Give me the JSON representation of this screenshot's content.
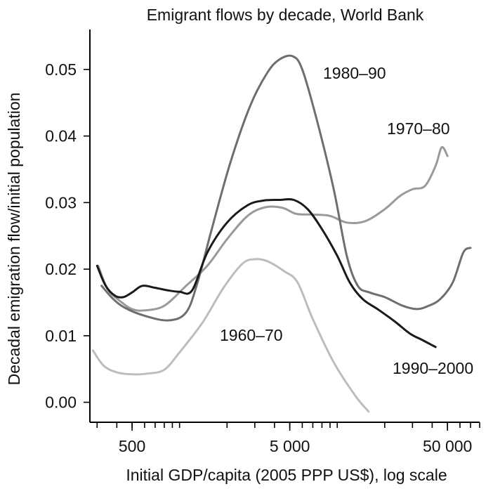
{
  "chart_data": {
    "type": "line",
    "title": "Emigrant flows by decade, World Bank",
    "xlabel": "Initial GDP/capita (2005 PPP US$), log scale",
    "ylabel": "Decadal emigration flow/initial population",
    "x_scale": "log",
    "xlim": [
      270,
      80000
    ],
    "ylim": [
      -0.003,
      0.056
    ],
    "x_ticks": [
      500,
      5000,
      50000
    ],
    "x_tick_labels": [
      "500",
      "5 000",
      "50 000"
    ],
    "y_ticks": [
      0.0,
      0.01,
      0.02,
      0.03,
      0.04,
      0.05
    ],
    "y_tick_labels": [
      "0.00",
      "0.01",
      "0.02",
      "0.03",
      "0.04",
      "0.05"
    ],
    "grid": false,
    "legend": "none",
    "series": [
      {
        "name": "1960–70",
        "color": "#bdbdbd",
        "points": [
          [
            282,
            0.0078
          ],
          [
            330,
            0.0055
          ],
          [
            400,
            0.0045
          ],
          [
            500,
            0.0042
          ],
          [
            620,
            0.0043
          ],
          [
            800,
            0.0049
          ],
          [
            1000,
            0.0075
          ],
          [
            1400,
            0.012
          ],
          [
            1900,
            0.0172
          ],
          [
            2500,
            0.0208
          ],
          [
            3000,
            0.0215
          ],
          [
            3600,
            0.0212
          ],
          [
            4600,
            0.0197
          ],
          [
            5600,
            0.018
          ],
          [
            7000,
            0.0125
          ],
          [
            9500,
            0.006
          ],
          [
            13000,
            0.001
          ],
          [
            15800,
            -0.0014
          ]
        ]
      },
      {
        "name": "1970–80",
        "color": "#9a9a9a",
        "points": [
          [
            305,
            0.0205
          ],
          [
            350,
            0.017
          ],
          [
            420,
            0.0152
          ],
          [
            500,
            0.014
          ],
          [
            600,
            0.0138
          ],
          [
            800,
            0.0145
          ],
          [
            1100,
            0.0175
          ],
          [
            1500,
            0.0205
          ],
          [
            2000,
            0.0245
          ],
          [
            2700,
            0.028
          ],
          [
            3500,
            0.0293
          ],
          [
            4500,
            0.0292
          ],
          [
            5500,
            0.0283
          ],
          [
            7000,
            0.0282
          ],
          [
            9000,
            0.028
          ],
          [
            11500,
            0.027
          ],
          [
            15000,
            0.0272
          ],
          [
            20000,
            0.029
          ],
          [
            25000,
            0.031
          ],
          [
            30000,
            0.032
          ],
          [
            36000,
            0.0325
          ],
          [
            42000,
            0.0355
          ],
          [
            46000,
            0.0383
          ],
          [
            50000,
            0.037
          ]
        ]
      },
      {
        "name": "1980–90",
        "color": "#6e6e6e",
        "points": [
          [
            320,
            0.0175
          ],
          [
            380,
            0.0155
          ],
          [
            450,
            0.0142
          ],
          [
            600,
            0.013
          ],
          [
            850,
            0.0123
          ],
          [
            1100,
            0.0135
          ],
          [
            1300,
            0.018
          ],
          [
            1600,
            0.026
          ],
          [
            2100,
            0.036
          ],
          [
            2800,
            0.0445
          ],
          [
            3600,
            0.0495
          ],
          [
            4300,
            0.0515
          ],
          [
            5200,
            0.052
          ],
          [
            6000,
            0.05
          ],
          [
            7500,
            0.042
          ],
          [
            9500,
            0.032
          ],
          [
            11500,
            0.022
          ],
          [
            13500,
            0.0175
          ],
          [
            16000,
            0.0165
          ],
          [
            20000,
            0.0158
          ],
          [
            26000,
            0.0145
          ],
          [
            32000,
            0.014
          ],
          [
            38000,
            0.0145
          ],
          [
            45000,
            0.0155
          ],
          [
            54000,
            0.018
          ],
          [
            63000,
            0.0225
          ],
          [
            70000,
            0.0232
          ]
        ]
      },
      {
        "name": "1990–2000",
        "color": "#1a1a1a",
        "points": [
          [
            300,
            0.0205
          ],
          [
            340,
            0.0175
          ],
          [
            390,
            0.016
          ],
          [
            440,
            0.0158
          ],
          [
            500,
            0.0165
          ],
          [
            580,
            0.0175
          ],
          [
            700,
            0.0172
          ],
          [
            850,
            0.0168
          ],
          [
            1000,
            0.0166
          ],
          [
            1200,
            0.0168
          ],
          [
            1500,
            0.0225
          ],
          [
            2000,
            0.027
          ],
          [
            2700,
            0.0296
          ],
          [
            3400,
            0.0303
          ],
          [
            4300,
            0.0304
          ],
          [
            5300,
            0.0304
          ],
          [
            6500,
            0.029
          ],
          [
            8000,
            0.026
          ],
          [
            10000,
            0.022
          ],
          [
            12000,
            0.018
          ],
          [
            14500,
            0.0155
          ],
          [
            18000,
            0.014
          ],
          [
            23000,
            0.0122
          ],
          [
            29000,
            0.0103
          ],
          [
            35000,
            0.0093
          ],
          [
            42000,
            0.0083
          ]
        ]
      }
    ],
    "annotations": [
      {
        "text": "1980–90",
        "series": "1980–90"
      },
      {
        "text": "1970–80",
        "series": "1970–80"
      },
      {
        "text": "1960–70",
        "series": "1960–70"
      },
      {
        "text": "1990–2000",
        "series": "1990–2000"
      }
    ]
  }
}
